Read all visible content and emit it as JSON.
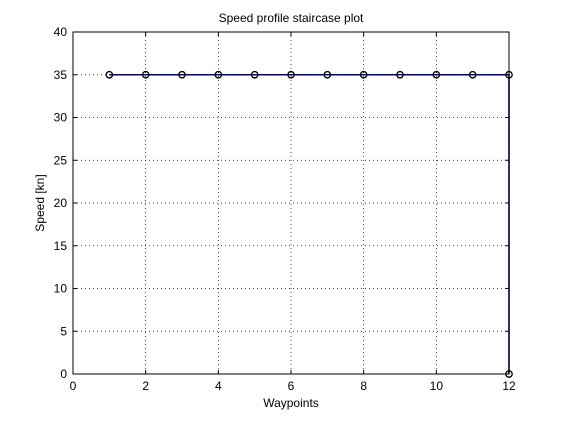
{
  "chart_data": {
    "type": "line",
    "title": "Speed profile staircase plot",
    "xlabel": "Waypoints",
    "ylabel": "Speed [kn]",
    "xlim": [
      0,
      12
    ],
    "ylim": [
      0,
      40
    ],
    "xticks": [
      0,
      2,
      4,
      6,
      8,
      10,
      12
    ],
    "yticks": [
      0,
      5,
      10,
      15,
      20,
      25,
      30,
      35,
      40
    ],
    "grid": true,
    "grid_style": "dotted",
    "series": [
      {
        "style": "stairs",
        "color": "#000080",
        "x": [
          1,
          12,
          12
        ],
        "y": [
          35,
          35,
          0
        ]
      }
    ],
    "markers": {
      "shape": "circle-open",
      "color": "#000000",
      "x": [
        1,
        2,
        3,
        4,
        5,
        6,
        7,
        8,
        9,
        10,
        11,
        12,
        12
      ],
      "y": [
        35,
        35,
        35,
        35,
        35,
        35,
        35,
        35,
        35,
        35,
        35,
        35,
        0
      ]
    }
  }
}
